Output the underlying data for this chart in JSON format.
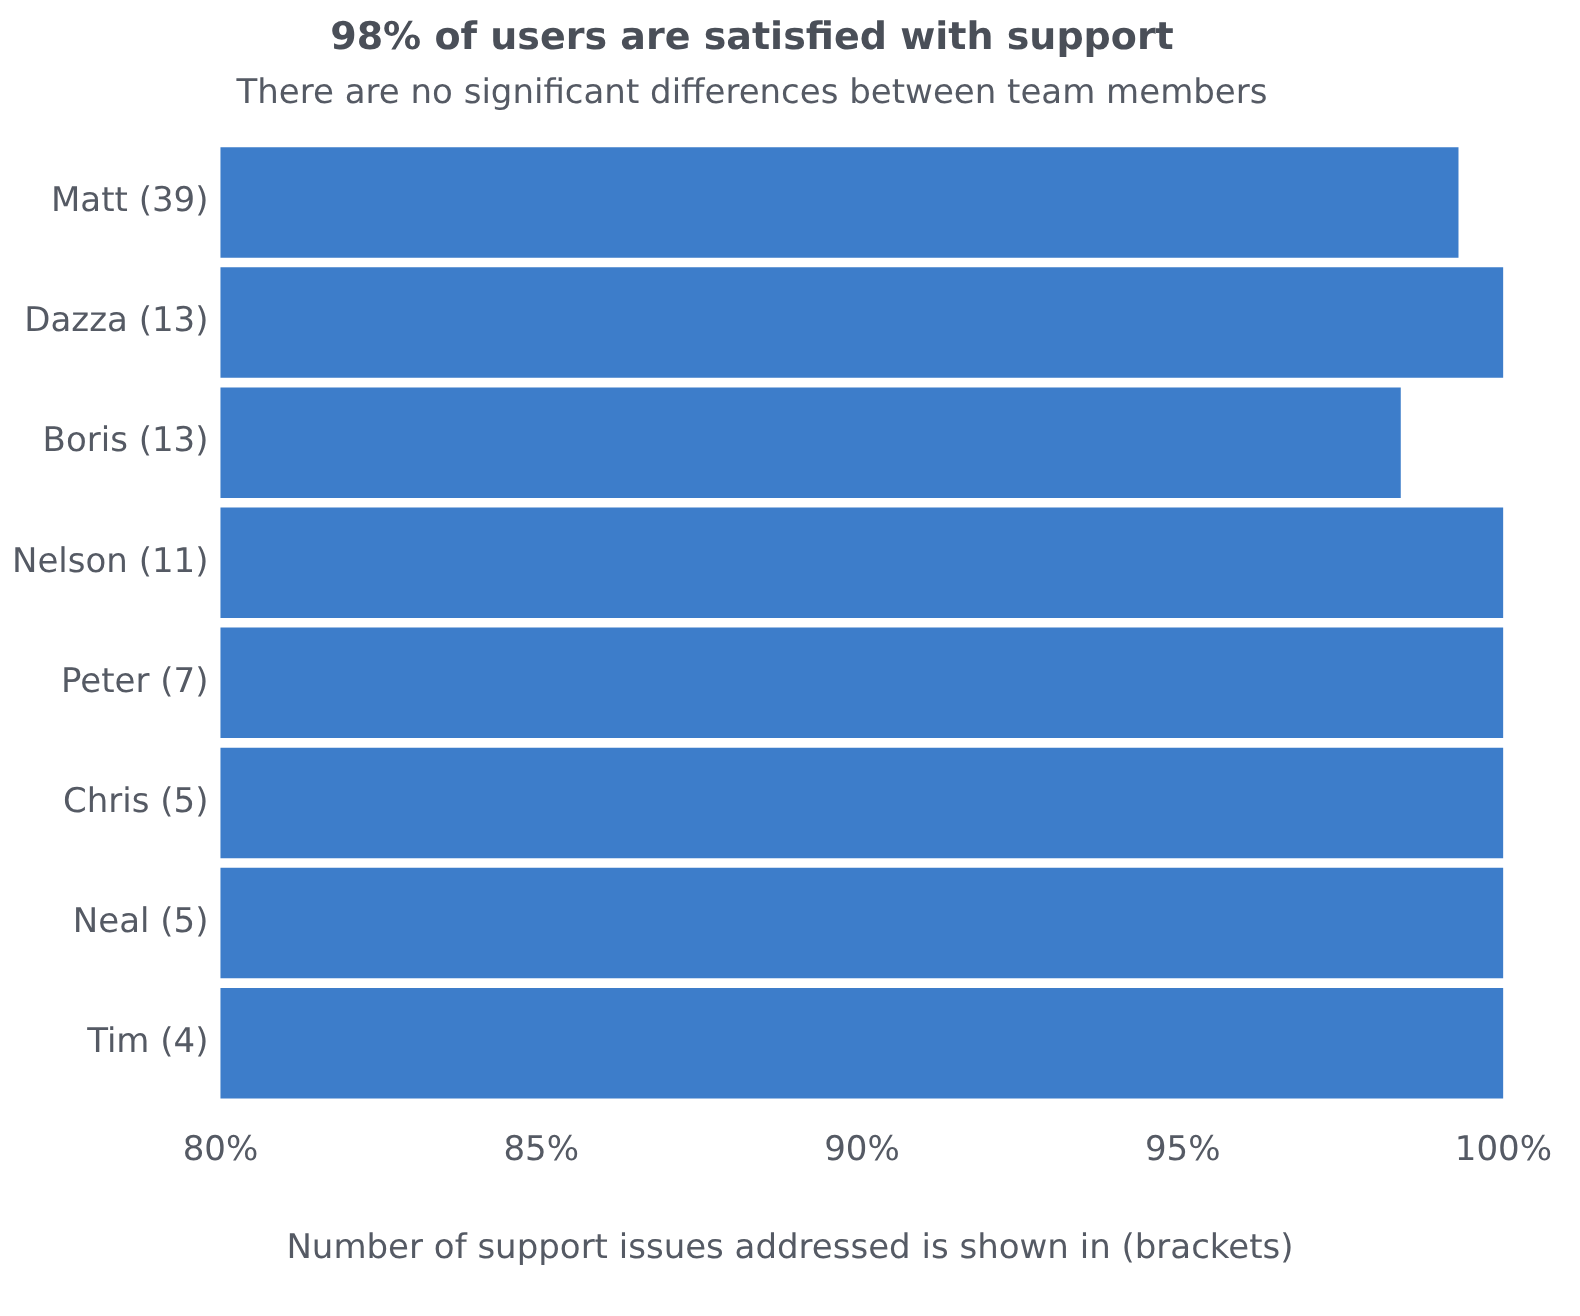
{
  "chart_data": {
    "type": "bar",
    "orientation": "horizontal",
    "title": "98% of users are satisfied with support",
    "subtitle": "There are no significant differences between team members",
    "categories": [
      "Matt (39)",
      "Dazza (13)",
      "Boris (13)",
      "Nelson (11)",
      "Peter (7)",
      "Chris (5)",
      "Neal (5)",
      "Tim (4)"
    ],
    "values": [
      99.3,
      100,
      98.4,
      100,
      100,
      100,
      100,
      100
    ],
    "color": "#3d7dca",
    "xlim": [
      80,
      100
    ],
    "xticks": [
      {
        "value": 80,
        "label": "80%"
      },
      {
        "value": 85,
        "label": "85%"
      },
      {
        "value": 90,
        "label": "90%"
      },
      {
        "value": 95,
        "label": "95%"
      },
      {
        "value": 100,
        "label": "100%"
      }
    ],
    "grid": false,
    "legend": false,
    "annotations": [
      "Number of support issues addressed is shown in (brackets)"
    ]
  }
}
